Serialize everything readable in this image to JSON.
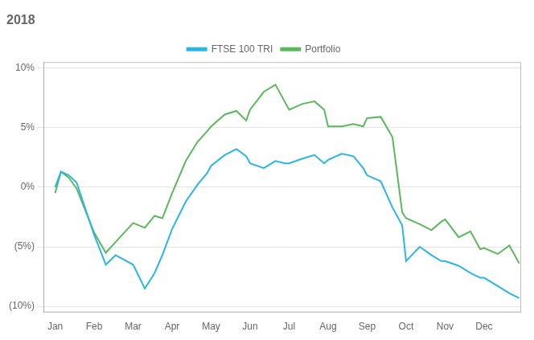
{
  "chart_data": {
    "type": "line",
    "title": "2018",
    "x": [
      0.0,
      0.15,
      0.35,
      0.55,
      1.0,
      1.3,
      1.55,
      2.0,
      2.3,
      2.55,
      2.75,
      3.0,
      3.35,
      3.65,
      3.9,
      4.0,
      4.35,
      4.65,
      4.9,
      5.0,
      5.35,
      5.65,
      5.9,
      6.0,
      6.35,
      6.65,
      6.9,
      7.0,
      7.35,
      7.65,
      7.9,
      8.0,
      8.35,
      8.65,
      8.9,
      9.0,
      9.35,
      9.65,
      9.9,
      10.0,
      10.35,
      10.65,
      10.9,
      11.0,
      11.35,
      11.65,
      11.9
    ],
    "series": [
      {
        "name": "FTSE 100 TRI",
        "color": "#29b5e8",
        "values": [
          0.0,
          0.013,
          0.01,
          0.004,
          -0.04,
          -0.065,
          -0.057,
          -0.065,
          -0.085,
          -0.072,
          -0.057,
          -0.035,
          -0.012,
          0.002,
          0.012,
          0.018,
          0.027,
          0.032,
          0.026,
          0.02,
          0.016,
          0.022,
          0.02,
          0.02,
          0.024,
          0.027,
          0.02,
          0.023,
          0.028,
          0.026,
          0.016,
          0.01,
          0.005,
          -0.017,
          -0.032,
          -0.062,
          -0.05,
          -0.057,
          -0.062,
          -0.062,
          -0.066,
          -0.072,
          -0.076,
          -0.076,
          -0.083,
          -0.089,
          -0.093
        ]
      },
      {
        "name": "Portfolio",
        "color": "#5cb85c",
        "values": [
          -0.005,
          0.013,
          0.008,
          -0.001,
          -0.038,
          -0.055,
          -0.046,
          -0.03,
          -0.034,
          -0.024,
          -0.026,
          -0.005,
          0.022,
          0.038,
          0.047,
          0.051,
          0.061,
          0.064,
          0.056,
          0.065,
          0.08,
          0.086,
          0.071,
          0.065,
          0.07,
          0.072,
          0.065,
          0.051,
          0.051,
          0.053,
          0.051,
          0.058,
          0.059,
          0.042,
          -0.021,
          -0.026,
          -0.031,
          -0.036,
          -0.029,
          -0.027,
          -0.042,
          -0.037,
          -0.052,
          -0.051,
          -0.056,
          -0.049,
          -0.064
        ]
      }
    ],
    "xlim": [
      -0.3,
      11.95
    ],
    "xticks": [
      {
        "value": 0,
        "label": "Jan"
      },
      {
        "value": 1,
        "label": "Feb"
      },
      {
        "value": 2,
        "label": "Mar"
      },
      {
        "value": 3,
        "label": "Apr"
      },
      {
        "value": 4,
        "label": "May"
      },
      {
        "value": 5,
        "label": "Jun"
      },
      {
        "value": 6,
        "label": "Jul"
      },
      {
        "value": 7,
        "label": "Aug"
      },
      {
        "value": 8,
        "label": "Sep"
      },
      {
        "value": 9,
        "label": "Oct"
      },
      {
        "value": 10,
        "label": "Nov"
      },
      {
        "value": 11,
        "label": "Dec"
      }
    ],
    "ylim": [
      -0.105,
      0.105
    ],
    "yticks": [
      {
        "value": -0.1,
        "label": "(10%)"
      },
      {
        "value": -0.05,
        "label": "(5%)"
      },
      {
        "value": 0.0,
        "label": "0%"
      },
      {
        "value": 0.05,
        "label": "5%"
      },
      {
        "value": 0.1,
        "label": "10%"
      }
    ],
    "grid": "y",
    "legend": "top"
  }
}
